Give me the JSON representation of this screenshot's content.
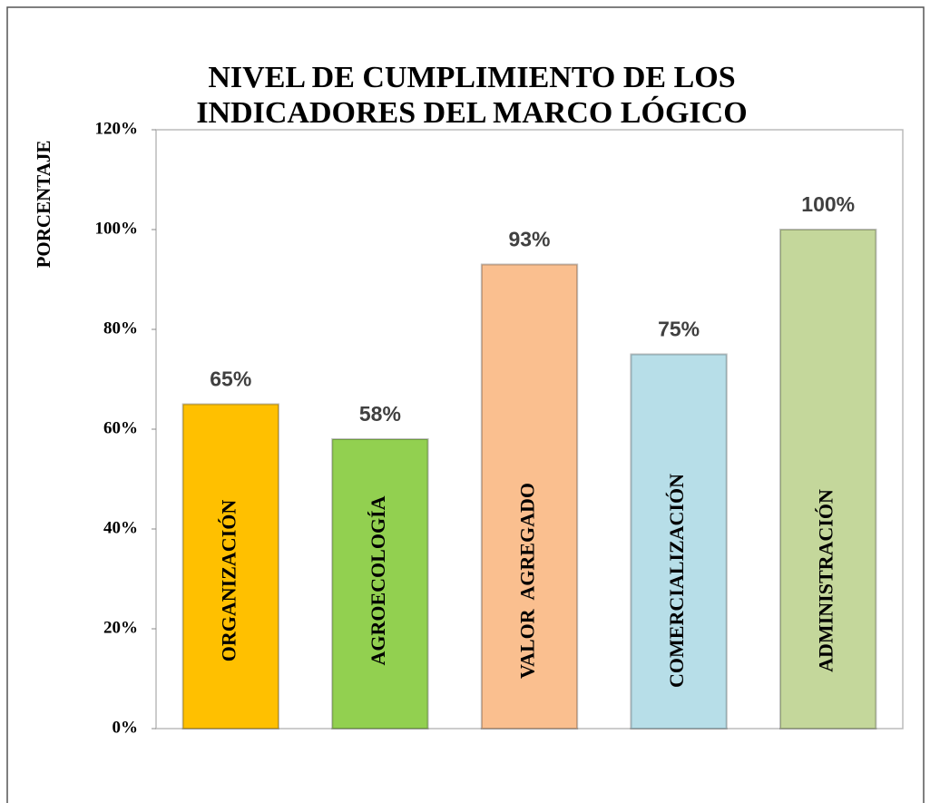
{
  "chart_data": {
    "type": "bar",
    "title": [
      "NIVEL DE CUMPLIMIENTO DE LOS",
      "INDICADORES DEL MARCO LÓGICO"
    ],
    "y_label": "PORCENTAJE",
    "categories": [
      "ORGANIZACIÓN",
      "AGROECOLOGÍA",
      "VALOR  AGREGADO",
      "COMERCIALIZACIÓN",
      "ADMINISTRACIÓN"
    ],
    "values": [
      65,
      58,
      93,
      75,
      100
    ],
    "value_labels": [
      "65%",
      "58%",
      "93%",
      "75%",
      "100%"
    ],
    "colors": [
      "#ffc000",
      "#92d050",
      "#fabf8f",
      "#b7dee8",
      "#c4d79b"
    ],
    "ylim": [
      0,
      120
    ],
    "yticks": [
      {
        "value": 0,
        "label": "0%"
      },
      {
        "value": 20,
        "label": "20%"
      },
      {
        "value": 40,
        "label": "40%"
      },
      {
        "value": 60,
        "label": "60%"
      },
      {
        "value": 80,
        "label": "80%"
      },
      {
        "value": 100,
        "label": "100%"
      },
      {
        "value": 120,
        "label": "120%"
      }
    ],
    "grid": false
  }
}
